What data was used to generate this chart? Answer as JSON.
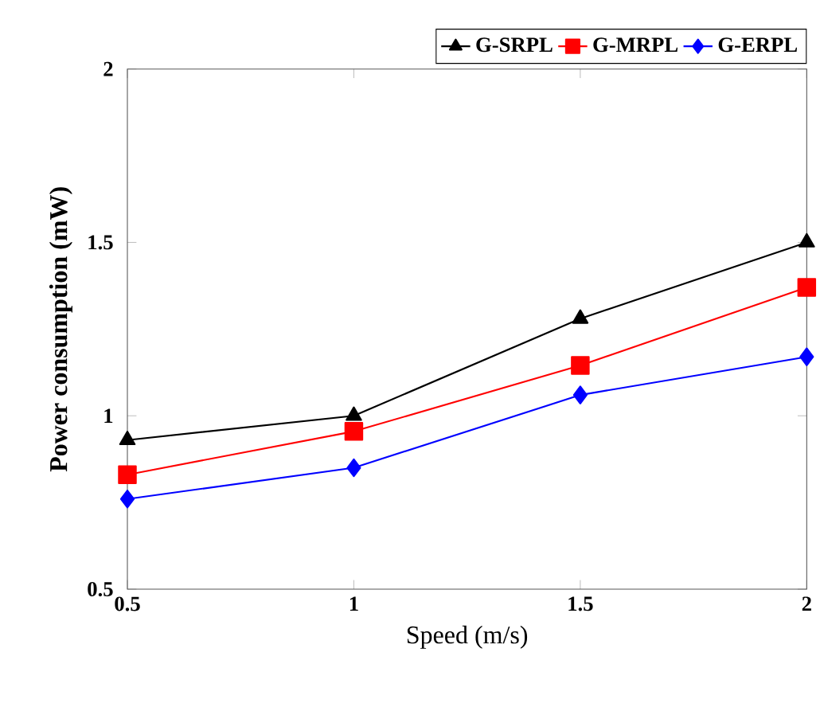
{
  "chart_data": {
    "type": "line",
    "xlabel": "Speed (m/s)",
    "ylabel": "Power consumption (mW)",
    "x": [
      0.5,
      1,
      1.5,
      2
    ],
    "xlim": [
      0.5,
      2
    ],
    "xticks": [
      0.5,
      1,
      1.5,
      2
    ],
    "ylim": [
      0.5,
      2
    ],
    "yticks": [
      0.5,
      1,
      1.5,
      2
    ],
    "series": [
      {
        "name": "G-SRPL",
        "color": "#000000",
        "marker": "triangle",
        "values": [
          0.93,
          1.0,
          1.28,
          1.5
        ]
      },
      {
        "name": "G-MRPL",
        "color": "#ff0000",
        "marker": "square",
        "values": [
          0.83,
          0.955,
          1.145,
          1.37
        ]
      },
      {
        "name": "G-ERPL",
        "color": "#0000ff",
        "marker": "diamond",
        "values": [
          0.76,
          0.85,
          1.06,
          1.17
        ]
      }
    ],
    "legend": "top right",
    "grid": false,
    "line_style": "solid"
  }
}
